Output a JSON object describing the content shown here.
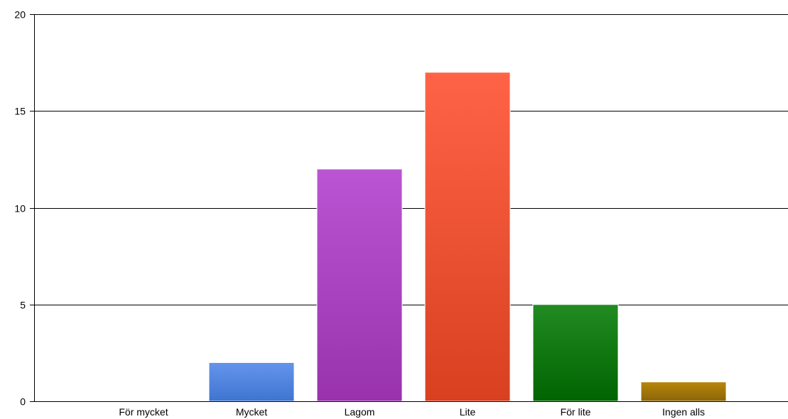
{
  "chart_data": {
    "type": "bar",
    "title": "",
    "xlabel": "",
    "ylabel": "",
    "ylim": [
      0,
      20
    ],
    "yticks": [
      0,
      5,
      10,
      15,
      20
    ],
    "grid": true,
    "legend": "none",
    "categories": [
      "För mycket",
      "Mycket",
      "Lagom",
      "Lite",
      "För lite",
      "Ingen alls"
    ],
    "values": [
      0,
      2,
      12,
      17,
      5,
      1
    ],
    "colors": [
      {
        "top": "#cccccc",
        "bottom": "#aaaaaa"
      },
      {
        "top": "#6495ed",
        "bottom": "#3f74cf"
      },
      {
        "top": "#ba55d3",
        "bottom": "#9932ac"
      },
      {
        "top": "#ff6347",
        "bottom": "#d84020"
      },
      {
        "top": "#228b22",
        "bottom": "#006400"
      },
      {
        "top": "#b8860b",
        "bottom": "#8b6508"
      }
    ]
  }
}
